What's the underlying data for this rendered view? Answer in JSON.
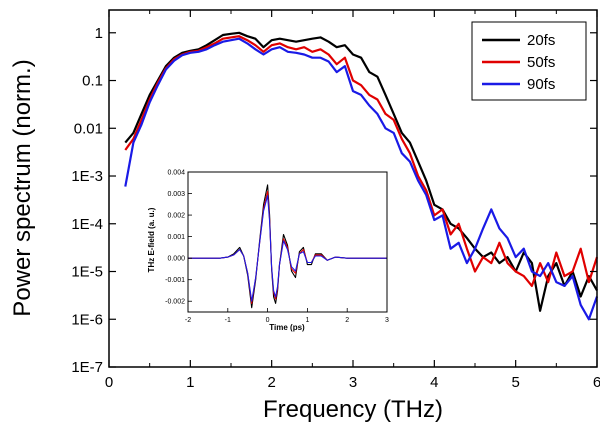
{
  "chart_data": [
    {
      "type": "line",
      "title": "",
      "xlabel": "Frequency (THz)",
      "ylabel": "Power spectrum (norm.)",
      "xlim": [
        0,
        6
      ],
      "ylim": [
        1e-07,
        3
      ],
      "yscale": "log",
      "xticks": [
        "0",
        "1",
        "2",
        "3",
        "4",
        "5",
        "6"
      ],
      "yticks": [
        {
          "value": 1e-07,
          "label": "1E-7"
        },
        {
          "value": 1e-06,
          "label": "1E-6"
        },
        {
          "value": 1e-05,
          "label": "1E-5"
        },
        {
          "value": 0.0001,
          "label": "1E-4"
        },
        {
          "value": 0.001,
          "label": "1E-3"
        },
        {
          "value": 0.01,
          "label": "0.01"
        },
        {
          "value": 0.1,
          "label": "0.1"
        },
        {
          "value": 1,
          "label": "1"
        }
      ],
      "grid": false,
      "legend": "top-right",
      "series": [
        {
          "name": "20fs",
          "color": "#000000",
          "x": [
            0.2,
            0.3,
            0.4,
            0.5,
            0.6,
            0.7,
            0.8,
            0.9,
            1.0,
            1.1,
            1.2,
            1.3,
            1.4,
            1.5,
            1.6,
            1.7,
            1.8,
            1.9,
            2.0,
            2.1,
            2.2,
            2.3,
            2.4,
            2.5,
            2.6,
            2.7,
            2.8,
            2.9,
            3.0,
            3.1,
            3.2,
            3.3,
            3.4,
            3.5,
            3.6,
            3.7,
            3.8,
            3.9,
            4.0,
            4.1,
            4.2,
            4.3,
            4.4,
            4.5,
            4.6,
            4.7,
            4.8,
            4.9,
            5.0,
            5.1,
            5.2,
            5.3,
            5.4,
            5.5,
            5.6,
            5.7,
            5.8,
            5.9,
            6.0
          ],
          "y": [
            0.005,
            0.008,
            0.02,
            0.05,
            0.1,
            0.2,
            0.3,
            0.38,
            0.42,
            0.45,
            0.55,
            0.7,
            0.9,
            0.95,
            1.0,
            0.85,
            0.75,
            0.5,
            0.7,
            0.75,
            0.7,
            0.65,
            0.7,
            0.75,
            0.8,
            0.65,
            0.5,
            0.55,
            0.35,
            0.3,
            0.15,
            0.12,
            0.05,
            0.02,
            0.008,
            0.005,
            0.002,
            0.0008,
            0.00025,
            0.0002,
            0.0001,
            8e-05,
            5e-05,
            3e-05,
            2e-05,
            2.5e-05,
            1.5e-05,
            2e-05,
            1e-05,
            2.5e-05,
            1.5e-05,
            1.5e-06,
            8e-06,
            1.5e-05,
            5e-06,
            1e-05,
            3e-06,
            8e-06,
            4e-06
          ]
        },
        {
          "name": "50fs",
          "color": "#e00000",
          "x": [
            0.2,
            0.3,
            0.4,
            0.5,
            0.6,
            0.7,
            0.8,
            0.9,
            1.0,
            1.1,
            1.2,
            1.3,
            1.4,
            1.5,
            1.6,
            1.7,
            1.8,
            1.9,
            2.0,
            2.1,
            2.2,
            2.3,
            2.4,
            2.5,
            2.6,
            2.7,
            2.8,
            2.9,
            3.0,
            3.1,
            3.2,
            3.3,
            3.4,
            3.5,
            3.6,
            3.7,
            3.8,
            3.9,
            4.0,
            4.1,
            4.2,
            4.3,
            4.4,
            4.5,
            4.6,
            4.7,
            4.8,
            4.9,
            5.0,
            5.1,
            5.2,
            5.3,
            5.4,
            5.5,
            5.6,
            5.7,
            5.8,
            5.9,
            6.0
          ],
          "y": [
            0.0035,
            0.006,
            0.015,
            0.04,
            0.09,
            0.18,
            0.28,
            0.35,
            0.4,
            0.42,
            0.5,
            0.6,
            0.75,
            0.8,
            0.85,
            0.7,
            0.55,
            0.4,
            0.55,
            0.6,
            0.5,
            0.45,
            0.5,
            0.4,
            0.45,
            0.35,
            0.22,
            0.3,
            0.1,
            0.08,
            0.05,
            0.04,
            0.02,
            0.015,
            0.006,
            0.003,
            0.001,
            0.0005,
            0.00015,
            0.0002,
            6e-05,
            0.0001,
            3e-05,
            1e-05,
            2e-05,
            1.5e-05,
            4e-05,
            1.5e-05,
            1e-05,
            8e-06,
            5e-06,
            1.5e-05,
            6e-06,
            2.5e-05,
            8e-06,
            1e-05,
            3e-05,
            6e-06,
            2e-05
          ]
        },
        {
          "name": "90fs",
          "color": "#1a1ae6",
          "x": [
            0.2,
            0.3,
            0.4,
            0.5,
            0.6,
            0.7,
            0.8,
            0.9,
            1.0,
            1.1,
            1.2,
            1.3,
            1.4,
            1.5,
            1.6,
            1.7,
            1.8,
            1.9,
            2.0,
            2.1,
            2.2,
            2.3,
            2.4,
            2.5,
            2.6,
            2.7,
            2.8,
            2.9,
            3.0,
            3.1,
            3.2,
            3.3,
            3.4,
            3.5,
            3.6,
            3.7,
            3.8,
            3.9,
            4.0,
            4.1,
            4.2,
            4.3,
            4.4,
            4.5,
            4.6,
            4.7,
            4.8,
            4.9,
            5.0,
            5.1,
            5.2,
            5.3,
            5.4,
            5.5,
            5.6,
            5.7,
            5.8,
            5.9,
            6.0
          ],
          "y": [
            0.0006,
            0.005,
            0.012,
            0.035,
            0.08,
            0.17,
            0.26,
            0.34,
            0.38,
            0.4,
            0.45,
            0.55,
            0.65,
            0.7,
            0.75,
            0.6,
            0.45,
            0.35,
            0.45,
            0.5,
            0.4,
            0.38,
            0.35,
            0.3,
            0.3,
            0.25,
            0.15,
            0.2,
            0.06,
            0.05,
            0.03,
            0.02,
            0.01,
            0.008,
            0.003,
            0.002,
            0.0008,
            0.0004,
            0.00012,
            0.00015,
            3e-05,
            4e-05,
            1.5e-05,
            3e-05,
            8e-05,
            0.0002,
            8e-05,
            5e-05,
            2e-05,
            3e-05,
            1e-05,
            8e-06,
            1.5e-05,
            6e-06,
            5e-06,
            8e-06,
            2e-06,
            1e-06,
            3e-06
          ]
        }
      ]
    },
    {
      "type": "line",
      "title": "",
      "xlabel": "Time (ps)",
      "ylabel": "THz E-field (a. u.)",
      "xlim": [
        -2,
        3
      ],
      "ylim": [
        -0.0025,
        0.004
      ],
      "xticks": [
        "-2",
        "-1",
        "0",
        "1",
        "2",
        "3"
      ],
      "yticks": [
        "-0.002",
        "-0.001",
        "0.000",
        "0.001",
        "0.002",
        "0.003",
        "0.004"
      ],
      "grid": false,
      "series": [
        {
          "color": "#000000",
          "x": [
            -2.0,
            -1.5,
            -1.2,
            -1.0,
            -0.85,
            -0.7,
            -0.6,
            -0.5,
            -0.4,
            -0.3,
            -0.2,
            -0.1,
            0.0,
            0.05,
            0.1,
            0.15,
            0.2,
            0.25,
            0.3,
            0.4,
            0.5,
            0.6,
            0.7,
            0.8,
            0.9,
            1.0,
            1.1,
            1.2,
            1.35,
            1.5,
            1.7,
            2.0,
            2.5,
            3.0
          ],
          "y": [
            0.0,
            0.0,
            0.0,
            5e-05,
            0.0002,
            0.0005,
            0.0001,
            -0.0008,
            -0.0023,
            -0.001,
            0.0008,
            0.0025,
            0.0034,
            0.002,
            -0.0005,
            -0.0018,
            -0.0021,
            -0.0015,
            -0.0003,
            0.0011,
            0.0006,
            -0.0006,
            -0.0009,
            0.0003,
            0.0005,
            -0.0003,
            -0.0003,
            0.0002,
            0.0002,
            -0.0001,
            5e-05,
            0.0,
            0.0,
            0.0
          ]
        },
        {
          "color": "#e00000",
          "x": [
            -2.0,
            -1.5,
            -1.2,
            -1.0,
            -0.85,
            -0.7,
            -0.6,
            -0.5,
            -0.4,
            -0.3,
            -0.2,
            -0.1,
            0.0,
            0.05,
            0.1,
            0.15,
            0.2,
            0.25,
            0.3,
            0.4,
            0.5,
            0.6,
            0.7,
            0.8,
            0.9,
            1.0,
            1.1,
            1.2,
            1.35,
            1.5,
            1.7,
            2.0,
            2.5,
            3.0
          ],
          "y": [
            0.0,
            0.0,
            0.0,
            5e-05,
            0.00015,
            0.0004,
            0.0001,
            -0.0007,
            -0.0021,
            -0.0009,
            0.0007,
            0.0023,
            0.0031,
            0.0018,
            -0.0004,
            -0.0016,
            -0.0019,
            -0.0014,
            -0.0003,
            0.0009,
            0.0005,
            -0.0005,
            -0.0007,
            0.0002,
            0.0004,
            -0.0002,
            -0.0002,
            0.00015,
            0.00015,
            -0.0001,
            5e-05,
            0.0,
            0.0,
            0.0
          ]
        },
        {
          "color": "#1a1ae6",
          "x": [
            -2.0,
            -1.5,
            -1.2,
            -1.0,
            -0.85,
            -0.7,
            -0.6,
            -0.5,
            -0.4,
            -0.3,
            -0.2,
            -0.1,
            0.0,
            0.05,
            0.1,
            0.15,
            0.2,
            0.25,
            0.3,
            0.4,
            0.5,
            0.6,
            0.7,
            0.8,
            0.9,
            1.0,
            1.1,
            1.2,
            1.35,
            1.5,
            1.7,
            2.0,
            2.5,
            3.0
          ],
          "y": [
            0.0,
            0.0,
            0.0,
            5e-05,
            0.00015,
            0.0004,
            0.0001,
            -0.0007,
            -0.002,
            -0.0009,
            0.0007,
            0.0022,
            0.0029,
            0.0017,
            -0.0004,
            -0.0015,
            -0.0018,
            -0.0013,
            -0.0003,
            0.0008,
            0.0004,
            -0.0004,
            -0.0006,
            0.0002,
            0.0003,
            -0.0002,
            -0.0002,
            0.0001,
            0.0001,
            -0.0001,
            5e-05,
            0.0,
            0.0,
            0.0
          ]
        }
      ]
    }
  ]
}
